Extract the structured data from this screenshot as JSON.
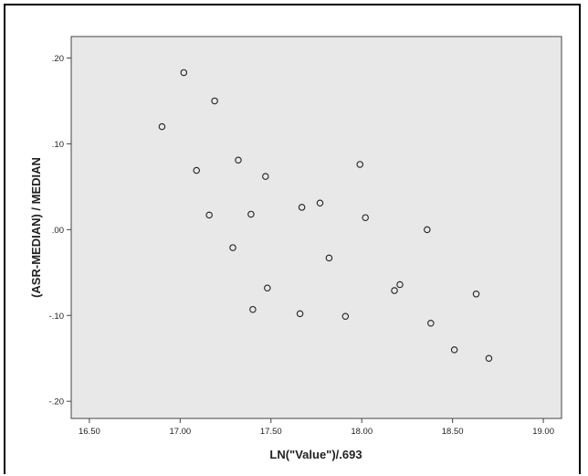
{
  "chart_data": {
    "type": "scatter",
    "xlabel": "LN(\"Value\")/.693",
    "ylabel": "(ASR-MEDIAN) / MEDIAN",
    "xlim": [
      16.4,
      19.1
    ],
    "ylim": [
      -0.22,
      0.225
    ],
    "xticks": [
      16.5,
      17.0,
      17.5,
      18.0,
      18.5,
      19.0
    ],
    "xtick_labels": [
      "16.50",
      "17.00",
      "17.50",
      "18.00",
      "18.50",
      "19.00"
    ],
    "yticks": [
      0.2,
      0.1,
      0.0,
      -0.1,
      -0.2
    ],
    "ytick_labels": [
      ".20",
      ".10",
      ".00",
      "-.10",
      "-.20"
    ],
    "grid": false,
    "plot_background": "#e8e8e8",
    "marker_color": "#222222",
    "points": [
      {
        "x": 16.9,
        "y": 0.12
      },
      {
        "x": 17.02,
        "y": 0.183
      },
      {
        "x": 17.09,
        "y": 0.069
      },
      {
        "x": 17.16,
        "y": 0.017
      },
      {
        "x": 17.19,
        "y": 0.15
      },
      {
        "x": 17.29,
        "y": -0.021
      },
      {
        "x": 17.32,
        "y": 0.081
      },
      {
        "x": 17.39,
        "y": 0.018
      },
      {
        "x": 17.4,
        "y": -0.093
      },
      {
        "x": 17.47,
        "y": 0.062
      },
      {
        "x": 17.48,
        "y": -0.068
      },
      {
        "x": 17.66,
        "y": -0.098
      },
      {
        "x": 17.67,
        "y": 0.026
      },
      {
        "x": 17.77,
        "y": 0.031
      },
      {
        "x": 17.82,
        "y": -0.033
      },
      {
        "x": 17.91,
        "y": -0.101
      },
      {
        "x": 17.99,
        "y": 0.076
      },
      {
        "x": 18.02,
        "y": 0.014
      },
      {
        "x": 18.18,
        "y": -0.071
      },
      {
        "x": 18.21,
        "y": -0.064
      },
      {
        "x": 18.36,
        "y": 0.0
      },
      {
        "x": 18.38,
        "y": -0.109
      },
      {
        "x": 18.51,
        "y": -0.14
      },
      {
        "x": 18.63,
        "y": -0.075
      },
      {
        "x": 18.7,
        "y": -0.15
      }
    ]
  }
}
